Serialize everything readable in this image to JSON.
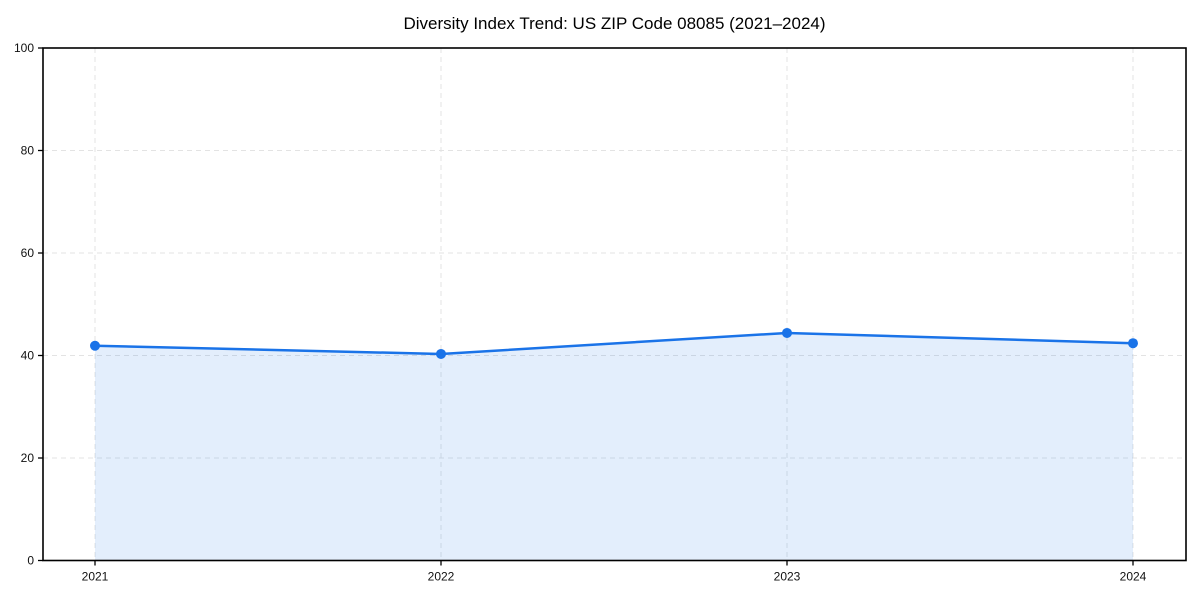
{
  "chart": {
    "title": "Diversity Index Trend: US ZIP Code 08085 (2021–2024)"
  },
  "chart_data": {
    "type": "line",
    "title": "Diversity Index Trend: US ZIP Code 08085 (2021–2024)",
    "x": [
      "2021",
      "2022",
      "2023",
      "2024"
    ],
    "series": [
      {
        "name": "Diversity Index",
        "values": [
          41.9,
          40.3,
          44.4,
          42.4
        ]
      }
    ],
    "xlabel": "",
    "ylabel": "",
    "ylim": [
      0,
      100
    ],
    "yticks": [
      0,
      20,
      40,
      60,
      80,
      100
    ],
    "grid": true,
    "grid_style": "dashed",
    "legend_position": "none",
    "marker": "circle",
    "area_fill": true,
    "colors": {
      "line": "#1a73e8",
      "marker": "#1a73e8",
      "fill": "rgba(26,115,232,0.12)",
      "grid": "#e3e3e3",
      "spine": "#000000",
      "tick_text": "#111111",
      "background": "#ffffff"
    }
  }
}
